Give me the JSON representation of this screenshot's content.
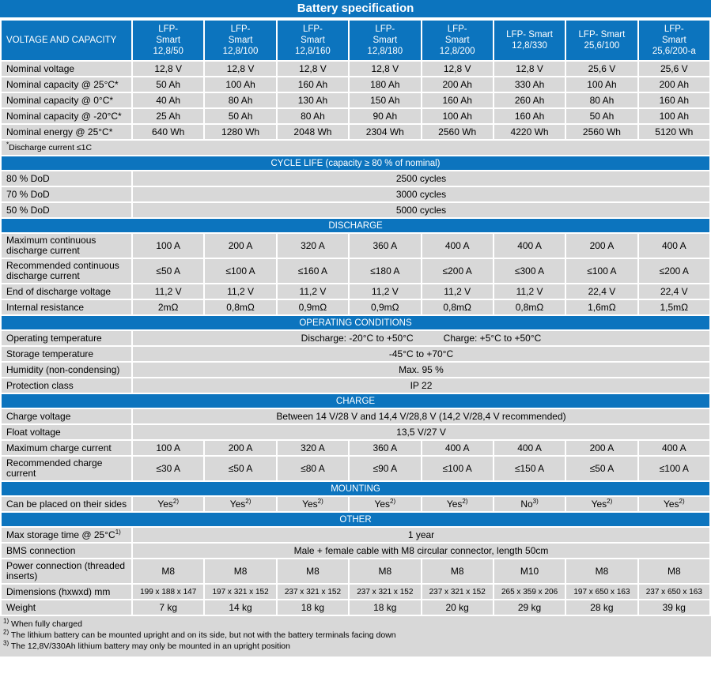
{
  "title": "Battery specification",
  "colors": {
    "banner_blue": "#0c74be",
    "cell_gray": "#d8d8d8",
    "separator_white": "#ffffff",
    "banner_text": "#ffffff",
    "body_text": "#000000"
  },
  "header": {
    "label": "VOLTAGE AND CAPACITY",
    "models": [
      "LFP-\nSmart\n12,8/50",
      "LFP-\nSmart\n12,8/100",
      "LFP-\nSmart\n12,8/160",
      "LFP-\nSmart\n12,8/180",
      "LFP-\nSmart\n12,8/200",
      "LFP- Smart\n12,8/330",
      "LFP- Smart\n25,6/100",
      "LFP-\nSmart\n25,6/200-a"
    ]
  },
  "capacity": {
    "rows": [
      {
        "label": "Nominal voltage",
        "values": [
          "12,8 V",
          "12,8 V",
          "12,8 V",
          "12,8 V",
          "12,8 V",
          "12,8 V",
          "25,6 V",
          "25,6 V"
        ]
      },
      {
        "label": "Nominal capacity @ 25°C*",
        "values": [
          "50 Ah",
          "100 Ah",
          "160 Ah",
          "180 Ah",
          "200 Ah",
          "330 Ah",
          "100 Ah",
          "200 Ah"
        ]
      },
      {
        "label": "Nominal capacity @ 0°C*",
        "values": [
          "40 Ah",
          "80 Ah",
          "130 Ah",
          "150 Ah",
          "160 Ah",
          "260 Ah",
          "80 Ah",
          "160 Ah"
        ]
      },
      {
        "label": "Nominal capacity @ -20°C*",
        "values": [
          "25 Ah",
          "50 Ah",
          "80 Ah",
          "90 Ah",
          "100 Ah",
          "160 Ah",
          "50 Ah",
          "100 Ah"
        ]
      },
      {
        "label": "Nominal energy @ 25°C*",
        "values": [
          "640 Wh",
          "1280 Wh",
          "2048 Wh",
          "2304 Wh",
          "2560 Wh",
          "4220 Wh",
          "2560 Wh",
          "5120 Wh"
        ]
      }
    ]
  },
  "note": {
    "sup": "*",
    "text": "Discharge current ≤1C"
  },
  "cycle_life": {
    "title": "CYCLE LIFE (capacity ≥ 80 % of nominal)",
    "rows": [
      {
        "label": "80 % DoD",
        "value": "2500 cycles"
      },
      {
        "label": "70 % DoD",
        "value": "3000 cycles"
      },
      {
        "label": "50 % DoD",
        "value": "5000 cycles"
      }
    ]
  },
  "discharge": {
    "title": "DISCHARGE",
    "rows": [
      {
        "label": "Maximum continuous discharge current",
        "values": [
          "100 A",
          "200 A",
          "320 A",
          "360 A",
          "400 A",
          "400 A",
          "200 A",
          "400 A"
        ]
      },
      {
        "label": "Recommended continuous discharge current",
        "values": [
          "≤50 A",
          "≤100 A",
          "≤160 A",
          "≤180 A",
          "≤200 A",
          "≤300 A",
          "≤100 A",
          "≤200 A"
        ]
      },
      {
        "label": "End of discharge voltage",
        "values": [
          "11,2 V",
          "11,2 V",
          "11,2 V",
          "11,2 V",
          "11,2 V",
          "11,2 V",
          "22,4 V",
          "22,4 V"
        ]
      },
      {
        "label": "Internal resistance",
        "values": [
          "2mΩ",
          "0,8mΩ",
          "0,9mΩ",
          "0,9mΩ",
          "0,8mΩ",
          "0,8mΩ",
          "1,6mΩ",
          "1,5mΩ"
        ]
      }
    ]
  },
  "operating": {
    "title": "OPERATING CONDITIONS",
    "temperature": {
      "label": "Operating temperature",
      "parts": [
        "Discharge: -20°C to +50°C",
        "Charge: +5°C to +50°C"
      ]
    },
    "storage": {
      "label": "Storage temperature",
      "value": "-45°C to +70°C"
    },
    "humidity": {
      "label": "Humidity (non-condensing)",
      "value": "Max. 95 %"
    },
    "protection": {
      "label": "Protection class",
      "value": "IP 22"
    }
  },
  "charge": {
    "title": "CHARGE",
    "voltage_row": {
      "label": "Charge voltage",
      "value": "Between 14 V/28 V and 14,4 V/28,8 V (14,2 V/28,4 V recommended)"
    },
    "float_row": {
      "label": "Float voltage",
      "value": "13,5 V/27 V"
    },
    "max_row": {
      "label": "Maximum charge current",
      "values": [
        "100 A",
        "200 A",
        "320 A",
        "360 A",
        "400 A",
        "400 A",
        "200 A",
        "400 A"
      ]
    },
    "rec_row": {
      "label": "Recommended charge current",
      "values": [
        "≤30 A",
        "≤50 A",
        "≤80 A",
        "≤90 A",
        "≤100 A",
        "≤150 A",
        "≤50 A",
        "≤100 A"
      ]
    }
  },
  "mounting": {
    "title": "MOUNTING",
    "row": {
      "label": "Can be placed on their sides",
      "values": [
        {
          "text": "Yes",
          "sup": "2)"
        },
        {
          "text": "Yes",
          "sup": "2)"
        },
        {
          "text": "Yes",
          "sup": "2)"
        },
        {
          "text": "Yes",
          "sup": "2)"
        },
        {
          "text": "Yes",
          "sup": "2)"
        },
        {
          "text": "No",
          "sup": "3)"
        },
        {
          "text": "Yes",
          "sup": "2)"
        },
        {
          "text": "Yes",
          "sup": "2)"
        }
      ]
    }
  },
  "other": {
    "title": "OTHER",
    "storage_row": {
      "label": "Max storage time @ 25°C",
      "label_sup": "1)",
      "value": "1 year"
    },
    "bms_row": {
      "label": "BMS connection",
      "value": "Male + female cable with M8 circular connector, length 50cm"
    },
    "power_row": {
      "label": "Power connection (threaded inserts)",
      "values": [
        "M8",
        "M8",
        "M8",
        "M8",
        "M8",
        "M10",
        "M8",
        "M8"
      ]
    },
    "dims_row": {
      "label": "Dimensions (hxwxd) mm",
      "values": [
        "199 x 188 x 147",
        "197 x 321 x 152",
        "237 x 321 x 152",
        "237 x 321 x 152",
        "237 x 321 x 152",
        "265 x 359 x 206",
        "197 x 650 x 163",
        "237 x 650 x 163"
      ]
    },
    "weight_row": {
      "label": "Weight",
      "values": [
        "7 kg",
        "14 kg",
        "18 kg",
        "18 kg",
        "20 kg",
        "29 kg",
        "28 kg",
        "39 kg"
      ]
    }
  },
  "footnotes": [
    {
      "sup": "1)",
      "text": "When fully charged"
    },
    {
      "sup": "2)",
      "text": "The lithium battery can be mounted upright and on its side, but not with the battery terminals facing down"
    },
    {
      "sup": "3)",
      "text": "The 12,8V/330Ah lithium battery may only be mounted in an upright position"
    }
  ]
}
